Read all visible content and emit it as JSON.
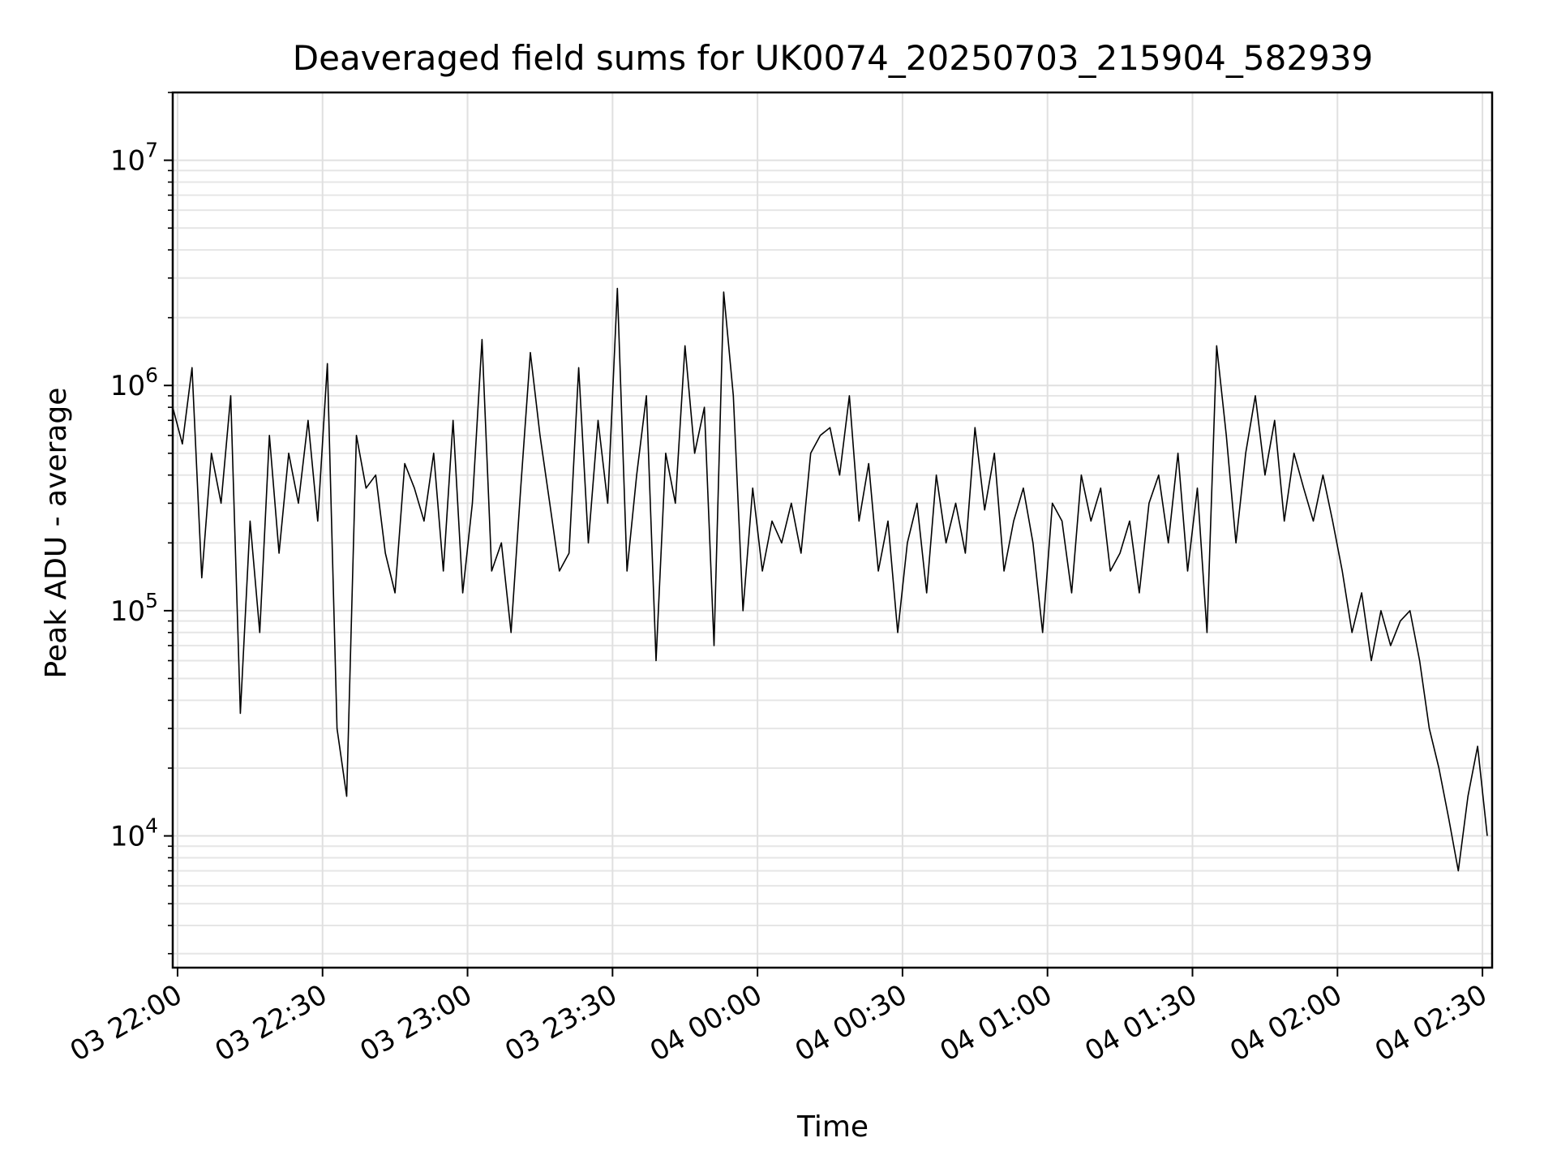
{
  "chart_data": {
    "type": "line",
    "title": "Deaveraged field sums for UK0074_20250703_215904_582939",
    "xlabel": "Time",
    "ylabel": "Peak ADU - average",
    "yscale": "log",
    "ylim": [
      2600,
      20000000
    ],
    "xlim": [
      "2025-07-03 21:59",
      "2025-07-04 02:32"
    ],
    "grid": true,
    "line_color": "#000000",
    "x_ticks": [
      {
        "value": "2025-07-03 22:00",
        "label": "03 22:00"
      },
      {
        "value": "2025-07-03 22:30",
        "label": "03 22:30"
      },
      {
        "value": "2025-07-03 23:00",
        "label": "03 23:00"
      },
      {
        "value": "2025-07-03 23:30",
        "label": "03 23:30"
      },
      {
        "value": "2025-07-04 00:00",
        "label": "04 00:00"
      },
      {
        "value": "2025-07-04 00:30",
        "label": "04 00:30"
      },
      {
        "value": "2025-07-04 01:00",
        "label": "04 01:00"
      },
      {
        "value": "2025-07-04 01:30",
        "label": "04 01:30"
      },
      {
        "value": "2025-07-04 02:00",
        "label": "04 02:00"
      },
      {
        "value": "2025-07-04 02:30",
        "label": "04 02:30"
      }
    ],
    "y_ticks": [
      {
        "value": 10000,
        "base": "10",
        "exp": "4"
      },
      {
        "value": 100000,
        "base": "10",
        "exp": "5"
      },
      {
        "value": 1000000,
        "base": "10",
        "exp": "6"
      },
      {
        "value": 10000000,
        "base": "10",
        "exp": "7"
      }
    ],
    "series": [
      {
        "x": [
          "2025-07-03 21:59",
          "2025-07-03 22:01",
          "2025-07-03 22:03",
          "2025-07-03 22:05",
          "2025-07-03 22:07",
          "2025-07-03 22:09",
          "2025-07-03 22:11",
          "2025-07-03 22:13",
          "2025-07-03 22:15",
          "2025-07-03 22:17",
          "2025-07-03 22:19",
          "2025-07-03 22:21",
          "2025-07-03 22:23",
          "2025-07-03 22:25",
          "2025-07-03 22:27",
          "2025-07-03 22:29",
          "2025-07-03 22:31",
          "2025-07-03 22:33",
          "2025-07-03 22:35",
          "2025-07-03 22:37",
          "2025-07-03 22:39",
          "2025-07-03 22:41",
          "2025-07-03 22:43",
          "2025-07-03 22:45",
          "2025-07-03 22:47",
          "2025-07-03 22:49",
          "2025-07-03 22:51",
          "2025-07-03 22:53",
          "2025-07-03 22:55",
          "2025-07-03 22:57",
          "2025-07-03 22:59",
          "2025-07-03 23:01",
          "2025-07-03 23:03",
          "2025-07-03 23:05",
          "2025-07-03 23:07",
          "2025-07-03 23:09",
          "2025-07-03 23:11",
          "2025-07-03 23:13",
          "2025-07-03 23:15",
          "2025-07-03 23:17",
          "2025-07-03 23:19",
          "2025-07-03 23:21",
          "2025-07-03 23:23",
          "2025-07-03 23:25",
          "2025-07-03 23:27",
          "2025-07-03 23:29",
          "2025-07-03 23:31",
          "2025-07-03 23:33",
          "2025-07-03 23:35",
          "2025-07-03 23:37",
          "2025-07-03 23:39",
          "2025-07-03 23:41",
          "2025-07-03 23:43",
          "2025-07-03 23:45",
          "2025-07-03 23:47",
          "2025-07-03 23:49",
          "2025-07-03 23:51",
          "2025-07-03 23:53",
          "2025-07-03 23:55",
          "2025-07-03 23:57",
          "2025-07-03 23:59",
          "2025-07-04 00:01",
          "2025-07-04 00:03",
          "2025-07-04 00:05",
          "2025-07-04 00:07",
          "2025-07-04 00:09",
          "2025-07-04 00:11",
          "2025-07-04 00:13",
          "2025-07-04 00:15",
          "2025-07-04 00:17",
          "2025-07-04 00:19",
          "2025-07-04 00:21",
          "2025-07-04 00:23",
          "2025-07-04 00:25",
          "2025-07-04 00:27",
          "2025-07-04 00:29",
          "2025-07-04 00:31",
          "2025-07-04 00:33",
          "2025-07-04 00:35",
          "2025-07-04 00:37",
          "2025-07-04 00:39",
          "2025-07-04 00:41",
          "2025-07-04 00:43",
          "2025-07-04 00:45",
          "2025-07-04 00:47",
          "2025-07-04 00:49",
          "2025-07-04 00:51",
          "2025-07-04 00:53",
          "2025-07-04 00:55",
          "2025-07-04 00:57",
          "2025-07-04 00:59",
          "2025-07-04 01:01",
          "2025-07-04 01:03",
          "2025-07-04 01:05",
          "2025-07-04 01:07",
          "2025-07-04 01:09",
          "2025-07-04 01:11",
          "2025-07-04 01:13",
          "2025-07-04 01:15",
          "2025-07-04 01:17",
          "2025-07-04 01:19",
          "2025-07-04 01:21",
          "2025-07-04 01:23",
          "2025-07-04 01:25",
          "2025-07-04 01:27",
          "2025-07-04 01:29",
          "2025-07-04 01:31",
          "2025-07-04 01:33",
          "2025-07-04 01:35",
          "2025-07-04 01:37",
          "2025-07-04 01:39",
          "2025-07-04 01:41",
          "2025-07-04 01:43",
          "2025-07-04 01:45",
          "2025-07-04 01:47",
          "2025-07-04 01:49",
          "2025-07-04 01:51",
          "2025-07-04 01:53",
          "2025-07-04 01:55",
          "2025-07-04 01:57",
          "2025-07-04 01:59",
          "2025-07-04 02:01",
          "2025-07-04 02:03",
          "2025-07-04 02:05",
          "2025-07-04 02:07",
          "2025-07-04 02:09",
          "2025-07-04 02:11",
          "2025-07-04 02:13",
          "2025-07-04 02:15",
          "2025-07-04 02:17",
          "2025-07-04 02:19",
          "2025-07-04 02:21",
          "2025-07-04 02:23",
          "2025-07-04 02:25",
          "2025-07-04 02:27",
          "2025-07-04 02:29",
          "2025-07-04 02:31"
        ],
        "y": [
          800000,
          550000,
          1200000,
          140000,
          500000,
          300000,
          900000,
          35000,
          250000,
          80000,
          600000,
          180000,
          500000,
          300000,
          700000,
          250000,
          1250000,
          30000,
          15000,
          600000,
          350000,
          400000,
          180000,
          120000,
          450000,
          350000,
          250000,
          500000,
          150000,
          700000,
          120000,
          300000,
          1600000,
          150000,
          200000,
          80000,
          350000,
          1400000,
          600000,
          300000,
          150000,
          180000,
          1200000,
          200000,
          700000,
          300000,
          2700000,
          150000,
          400000,
          900000,
          60000,
          500000,
          300000,
          1500000,
          500000,
          800000,
          70000,
          2600000,
          900000,
          100000,
          350000,
          150000,
          250000,
          200000,
          300000,
          180000,
          500000,
          600000,
          650000,
          400000,
          900000,
          250000,
          450000,
          150000,
          250000,
          80000,
          200000,
          300000,
          120000,
          400000,
          200000,
          300000,
          180000,
          650000,
          280000,
          500000,
          150000,
          250000,
          350000,
          200000,
          80000,
          300000,
          250000,
          120000,
          400000,
          250000,
          350000,
          150000,
          180000,
          250000,
          120000,
          300000,
          400000,
          200000,
          500000,
          150000,
          350000,
          80000,
          1500000,
          600000,
          200000,
          500000,
          900000,
          400000,
          700000,
          250000,
          500000,
          350000,
          250000,
          400000,
          250000,
          150000,
          80000,
          120000,
          60000,
          100000,
          70000,
          90000,
          100000,
          60000,
          30000,
          20000,
          12000,
          7000,
          15000,
          25000,
          10000
        ]
      }
    ]
  }
}
